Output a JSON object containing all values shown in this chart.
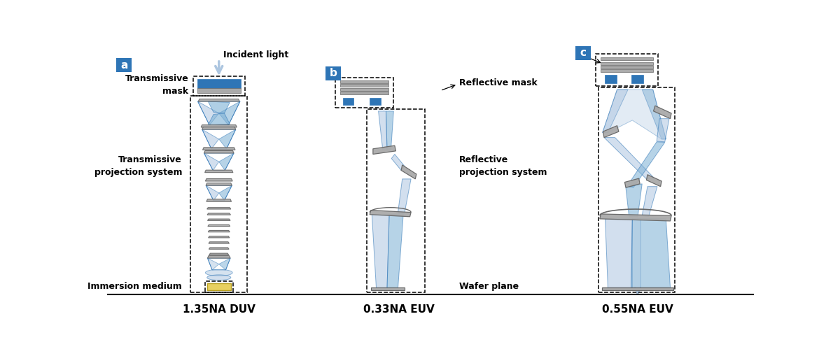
{
  "bg_color": "#ffffff",
  "dark_blue": "#2e75b6",
  "light_blue": "#adc6e0",
  "mid_blue": "#7bafd4",
  "gray": "#7f7f7f",
  "light_gray": "#aaaaaa",
  "dark_gray": "#666666",
  "yellow": "#e8d060",
  "yellow_edge": "#b8a020",
  "title_a": "1.35NA DUV",
  "title_b": "0.33NA EUV",
  "title_c": "0.55NA EUV",
  "text_incident": "Incident light",
  "text_trans_mask": "Transmissive\nmask",
  "text_trans_proj": "Transmissive\nprojection system",
  "text_immersion": "Immersion medium",
  "text_refl_mask": "Reflective mask",
  "text_refl_proj": "Reflective\nprojection system",
  "text_wafer": "Wafer plane",
  "label_a": "a",
  "label_b": "b",
  "label_c": "c"
}
